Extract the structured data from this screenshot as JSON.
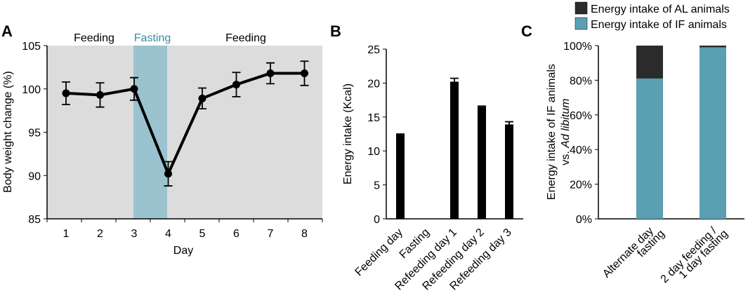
{
  "chart_data": [
    {
      "panel": "A",
      "type": "line",
      "xlabel": "Day",
      "ylabel": "Body weight change (%)",
      "ylim": [
        85,
        105
      ],
      "yticks": [
        "85",
        "90",
        "95",
        "100",
        "105"
      ],
      "x": [
        "1",
        "2",
        "3",
        "4",
        "5",
        "6",
        "7",
        "8"
      ],
      "values": [
        99.5,
        99.3,
        100.0,
        90.2,
        98.9,
        100.5,
        101.8,
        101.8
      ],
      "errors": [
        1.3,
        1.4,
        1.3,
        1.4,
        1.2,
        1.4,
        1.2,
        1.4
      ],
      "phases": [
        "Feeding",
        "Fasting",
        "Feeding"
      ],
      "colors": {
        "background": "#dcdcdc",
        "fasting": "#9ac3cf",
        "fasting_text": "#3a8fa6",
        "line": "#000000"
      }
    },
    {
      "panel": "B",
      "type": "bar",
      "ylabel": "Energy intake (Kcal)",
      "ylim": [
        0,
        25
      ],
      "yticks": [
        "0",
        "5",
        "10",
        "15",
        "20",
        "25"
      ],
      "categories": [
        "Feeding day",
        "Fasting",
        "Refeeding day 1",
        "Refeeding day 2",
        "Refeeding day 3"
      ],
      "values": [
        12.4,
        0,
        20.2,
        16.5,
        13.9
      ],
      "errors": [
        0.1,
        0,
        0.5,
        0.1,
        0.4
      ]
    },
    {
      "panel": "C",
      "type": "bar",
      "stacked": true,
      "ylabel_line1": "Energy intake of IF animals",
      "ylabel_line2_prefix": "vs. ",
      "ylabel_line2_italic": "Ad libitum",
      "ylim": [
        0,
        100
      ],
      "yticks": [
        "0%",
        "20%",
        "40%",
        "60%",
        "80%",
        "100%"
      ],
      "categories": [
        [
          "Alternate day",
          "fasting"
        ],
        [
          "2 day feeding /",
          "1 day fasting"
        ]
      ],
      "series": [
        {
          "name": "Energy intake of IF animals",
          "values": [
            81,
            99
          ],
          "color": "#5a9fb2"
        },
        {
          "name": "Energy intake of AL animals",
          "values": [
            19,
            1
          ],
          "color": "#2b2b2b"
        }
      ],
      "legend": "top"
    }
  ]
}
